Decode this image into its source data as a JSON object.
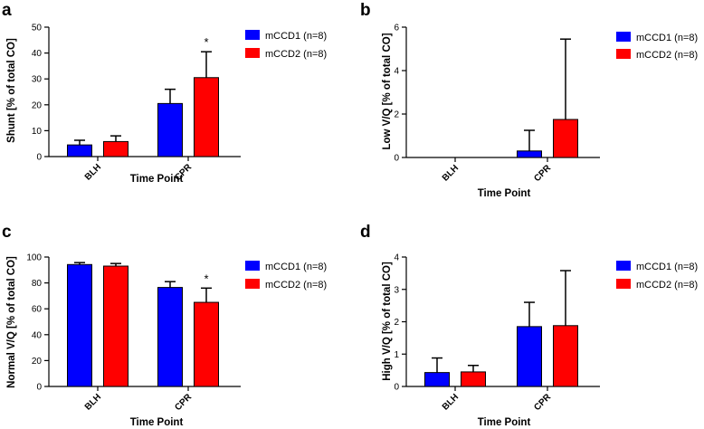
{
  "colors": {
    "mCCD1": "#0000ff",
    "mCCD2": "#ff0000",
    "axis": "#000000"
  },
  "chart_data": [
    {
      "type": "bar",
      "panel": "a",
      "ylabel": "Shunt [% of total CO]",
      "xlabel": "Time Point",
      "categories": [
        "BLH",
        "CPR"
      ],
      "ylim": [
        0,
        50
      ],
      "yticks": [
        0,
        10,
        20,
        30,
        40,
        50
      ],
      "series": [
        {
          "name": "mCCD1 (n=8)",
          "values": [
            4.5,
            20.5
          ],
          "errors": [
            1.8,
            5.5
          ]
        },
        {
          "name": "mCCD2 (n=8)",
          "values": [
            5.8,
            30.5
          ],
          "errors": [
            2.2,
            10.0
          ]
        }
      ],
      "annotations": [
        {
          "text": "*",
          "category": 1,
          "series": 1
        }
      ],
      "legend": "top-right"
    },
    {
      "type": "bar",
      "panel": "b",
      "ylabel": "Low V/Q [% of total CO]",
      "xlabel": "Time Point",
      "categories": [
        "BLH",
        "CPR"
      ],
      "ylim": [
        0,
        6
      ],
      "yticks": [
        0,
        2,
        4,
        6
      ],
      "series": [
        {
          "name": "mCCD1 (n=8)",
          "values": [
            0,
            0.3
          ],
          "errors": [
            0,
            0.95
          ]
        },
        {
          "name": "mCCD2 (n=8)",
          "values": [
            0,
            1.75
          ],
          "errors": [
            0,
            3.7
          ]
        }
      ],
      "annotations": [],
      "legend": "top-right"
    },
    {
      "type": "bar",
      "panel": "c",
      "ylabel": "Normal V/Q [% of total CO]",
      "xlabel": "Time Point",
      "categories": [
        "BLH",
        "CPR"
      ],
      "ylim": [
        0,
        100
      ],
      "yticks": [
        0,
        20,
        40,
        60,
        80,
        100
      ],
      "series": [
        {
          "name": "mCCD1 (n=8)",
          "values": [
            94.2,
            76.5
          ],
          "errors": [
            1.5,
            4.5
          ]
        },
        {
          "name": "mCCD2 (n=8)",
          "values": [
            93.0,
            65.0
          ],
          "errors": [
            2.0,
            11.0
          ]
        }
      ],
      "annotations": [
        {
          "text": "*",
          "category": 1,
          "series": 1
        }
      ],
      "legend": "top-right"
    },
    {
      "type": "bar",
      "panel": "d",
      "ylabel": "High V/Q [% of total CO]",
      "xlabel": "Time Point",
      "categories": [
        "BLH",
        "CPR"
      ],
      "ylim": [
        0,
        4
      ],
      "yticks": [
        0,
        1,
        2,
        3,
        4
      ],
      "series": [
        {
          "name": "mCCD1 (n=8)",
          "values": [
            0.43,
            1.85
          ],
          "errors": [
            0.45,
            0.75
          ]
        },
        {
          "name": "mCCD2 (n=8)",
          "values": [
            0.45,
            1.88
          ],
          "errors": [
            0.2,
            1.7
          ]
        }
      ],
      "annotations": [],
      "legend": "top-right"
    }
  ]
}
